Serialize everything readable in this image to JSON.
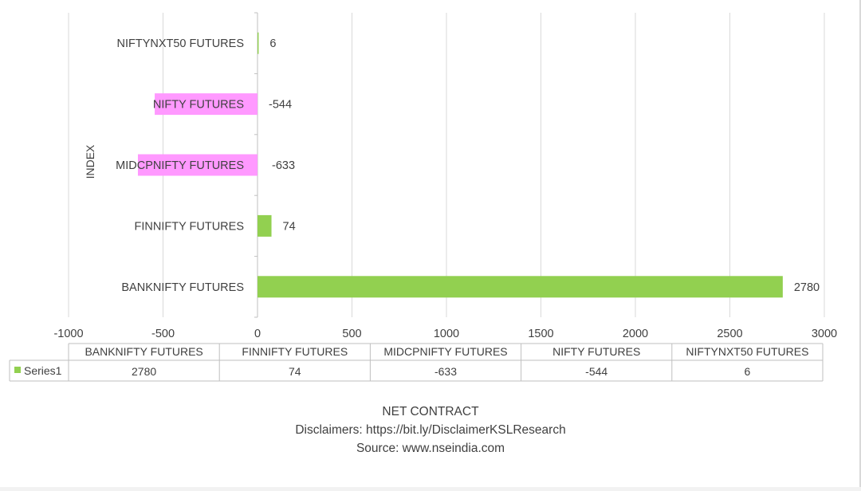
{
  "chart_data": {
    "type": "bar",
    "orientation": "horizontal",
    "categories": [
      "BANKNIFTY FUTURES",
      "FINNIFTY FUTURES",
      "MIDCPNIFTY FUTURES",
      "NIFTY FUTURES",
      "NIFTYNXT50 FUTURES"
    ],
    "series": [
      {
        "name": "Series1",
        "values": [
          2780,
          74,
          -633,
          -544,
          6
        ]
      }
    ],
    "xlim": [
      -1000,
      3000
    ],
    "xticks": [
      -1000,
      -500,
      0,
      500,
      1000,
      1500,
      2000,
      2500,
      3000
    ],
    "xlabel": "NET CONTRACT",
    "ylabel": "INDEX",
    "grid": true,
    "data_table": true,
    "colors": {
      "positive": "#92d050",
      "negative": "#ff99ff"
    }
  },
  "footer": {
    "disclaimer": "Disclaimers: https://bit.ly/DisclaimerKSLResearch",
    "source": "Source: www.nseindia.com"
  }
}
